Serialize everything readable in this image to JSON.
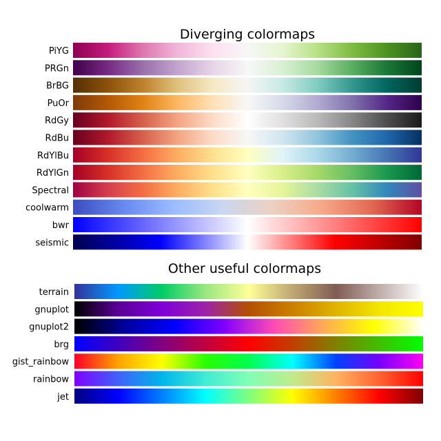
{
  "chart_data": [
    {
      "type": "heatmap",
      "title": "Diverging colormaps",
      "colormaps": [
        {
          "name": "PiYG",
          "stops": [
            "#8e0152",
            "#c51b7d",
            "#de77ae",
            "#f1b6da",
            "#fde0ef",
            "#f7f7f7",
            "#e6f5d0",
            "#b8e186",
            "#7fbc41",
            "#4d9221",
            "#276419"
          ]
        },
        {
          "name": "PRGn",
          "stops": [
            "#40004b",
            "#762a83",
            "#9970ab",
            "#c2a5cf",
            "#e7d4e8",
            "#f7f7f7",
            "#d9f0d3",
            "#a6dba0",
            "#5aae61",
            "#1b7837",
            "#00441b"
          ]
        },
        {
          "name": "BrBG",
          "stops": [
            "#543005",
            "#8c510a",
            "#bf812d",
            "#dfc27d",
            "#f6e8c3",
            "#f5f5f5",
            "#c7eae5",
            "#80cdc1",
            "#35978f",
            "#01665e",
            "#003c30"
          ]
        },
        {
          "name": "PuOr",
          "stops": [
            "#7f3b08",
            "#b35806",
            "#e08214",
            "#fdb863",
            "#fee0b6",
            "#f7f7f7",
            "#d8daeb",
            "#b2abd2",
            "#8073ac",
            "#542788",
            "#2d004b"
          ]
        },
        {
          "name": "RdGy",
          "stops": [
            "#67001f",
            "#b2182b",
            "#d6604d",
            "#f4a582",
            "#fddbc7",
            "#ffffff",
            "#e0e0e0",
            "#bababa",
            "#878787",
            "#4d4d4d",
            "#1a1a1a"
          ]
        },
        {
          "name": "RdBu",
          "stops": [
            "#67001f",
            "#b2182b",
            "#d6604d",
            "#f4a582",
            "#fddbc7",
            "#f7f7f7",
            "#d1e5f0",
            "#92c5de",
            "#4393c3",
            "#2166ac",
            "#053061"
          ]
        },
        {
          "name": "RdYlBu",
          "stops": [
            "#a50026",
            "#d73027",
            "#f46d43",
            "#fdae61",
            "#fee090",
            "#ffffbf",
            "#e0f3f8",
            "#abd9e9",
            "#74add1",
            "#4575b4",
            "#313695"
          ]
        },
        {
          "name": "RdYlGn",
          "stops": [
            "#a50026",
            "#d73027",
            "#f46d43",
            "#fdae61",
            "#fee08b",
            "#ffffbf",
            "#d9ef8b",
            "#a6d96a",
            "#66bd63",
            "#1a9850",
            "#006837"
          ]
        },
        {
          "name": "Spectral",
          "stops": [
            "#9e0142",
            "#d53e4f",
            "#f46d43",
            "#fdae61",
            "#fee08b",
            "#ffffbf",
            "#e6f598",
            "#abdda4",
            "#66c2a5",
            "#3288bd",
            "#5e4fa2"
          ]
        },
        {
          "name": "coolwarm",
          "stops": [
            "#3b4cc0",
            "#6788ee",
            "#9abbff",
            "#c9d7f0",
            "#edd1c2",
            "#f7a889",
            "#e26952",
            "#b40426"
          ]
        },
        {
          "name": "bwr",
          "stops": [
            "#0000ff",
            "#ffffff",
            "#ff0000"
          ]
        },
        {
          "name": "seismic",
          "stops": [
            "#00004d",
            "#0000ff",
            "#ffffff",
            "#ff0000",
            "#800000"
          ]
        }
      ]
    },
    {
      "type": "heatmap",
      "title": "Other useful colormaps",
      "colormaps": [
        {
          "name": "terrain",
          "stops": [
            "#333399",
            "#0099ff",
            "#00cc66",
            "#99e67f",
            "#ffff99",
            "#bfa772",
            "#805c54",
            "#bfaeaa",
            "#ffffff"
          ]
        },
        {
          "name": "gnuplot",
          "stops": [
            "#000000",
            "#5a0096",
            "#7f00d8",
            "#9c23a8",
            "#b44f00",
            "#cb8000",
            "#e0b300",
            "#f3e600",
            "#ffff00"
          ]
        },
        {
          "name": "gnuplot2",
          "stops": [
            "#000000",
            "#00009c",
            "#0000ff",
            "#8000ff",
            "#ff4ab5",
            "#ffaa55",
            "#ffff00",
            "#ffffff"
          ]
        },
        {
          "name": "brg",
          "stops": [
            "#0000ff",
            "#800080",
            "#ff0000",
            "#808000",
            "#00ff00"
          ]
        },
        {
          "name": "gist_rainbow",
          "stops": [
            "#ff0029",
            "#ffa300",
            "#ffff00",
            "#2aff00",
            "#00ff4f",
            "#00fffe",
            "#0041ff",
            "#7600ff",
            "#ff00f3"
          ]
        },
        {
          "name": "rainbow",
          "stops": [
            "#8000ff",
            "#4062fa",
            "#00b5eb",
            "#40ecd4",
            "#80ffb4",
            "#c0eb8d",
            "#ffb360",
            "#ff6230",
            "#ff0000"
          ]
        },
        {
          "name": "jet",
          "stops": [
            "#00007f",
            "#0000ff",
            "#007fff",
            "#00ffff",
            "#7fff7f",
            "#ffff00",
            "#ff7f00",
            "#ff0000",
            "#7f0000"
          ]
        }
      ]
    }
  ]
}
